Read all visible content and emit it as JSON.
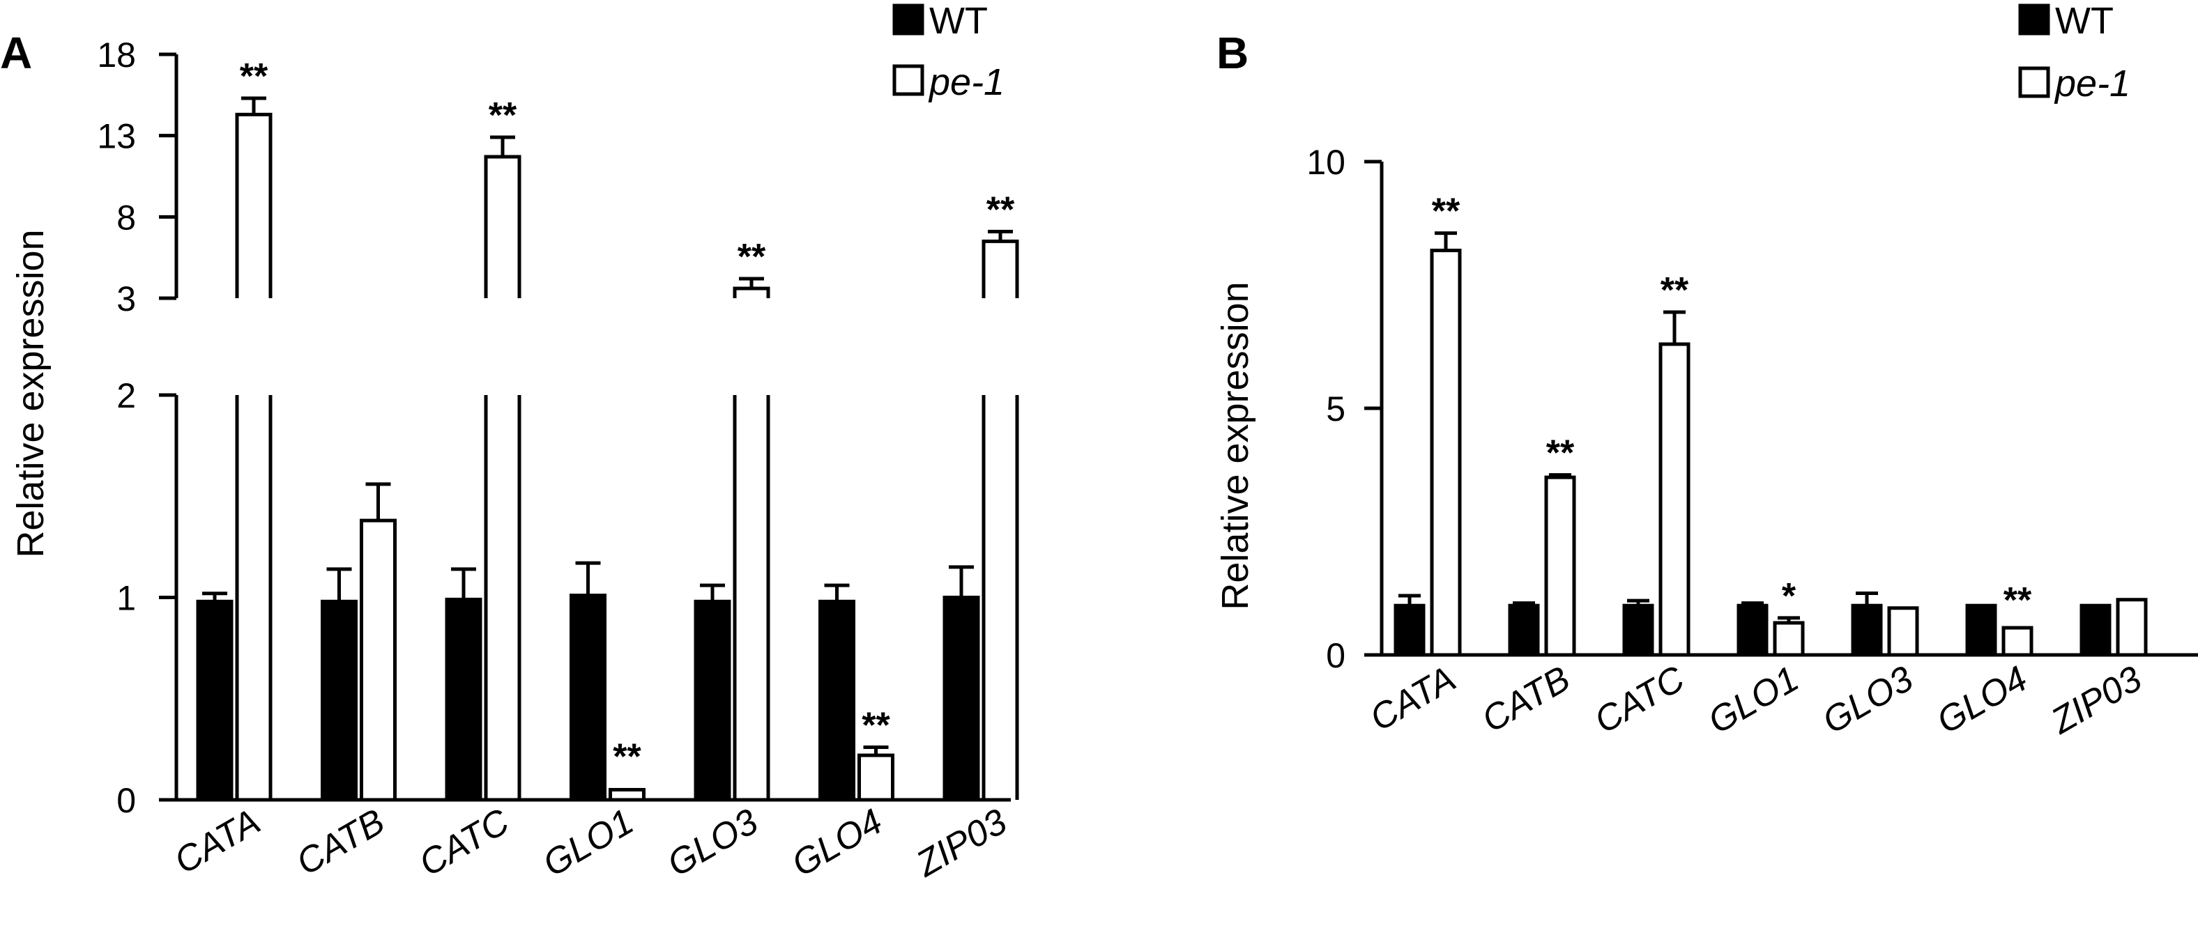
{
  "chart_data": [
    {
      "type": "bar",
      "panel_label": "A",
      "ylabel": "Relative expression",
      "axis": "broken",
      "lower_ylim": [
        0,
        2
      ],
      "lower_ticks": [
        "0",
        "1",
        "2"
      ],
      "upper_ylim": [
        3,
        18
      ],
      "upper_ticks": [
        "3",
        "8",
        "13",
        "18"
      ],
      "categories": [
        "CATA",
        "CATB",
        "CATC",
        "GLO1",
        "GLO3",
        "GLO4",
        "ZIP03"
      ],
      "series": [
        {
          "name": "WT",
          "color": "#000000",
          "values": [
            0.98,
            0.98,
            0.99,
            1.01,
            0.98,
            0.98,
            1.0
          ],
          "errors": [
            0.04,
            0.16,
            0.15,
            0.16,
            0.08,
            0.08,
            0.15
          ]
        },
        {
          "name": "pe-1",
          "color": "#ffffff",
          "values": [
            14.3,
            1.38,
            11.7,
            0.05,
            3.6,
            0.22,
            6.5
          ],
          "errors": [
            1.0,
            0.18,
            1.2,
            0.0,
            0.6,
            0.04,
            0.6
          ]
        }
      ],
      "significance": [
        "**",
        "",
        "**",
        "**",
        "**",
        "**",
        "**"
      ],
      "legend": {
        "position": "top-right",
        "entries": [
          "WT",
          "pe-1"
        ]
      },
      "grid": false
    },
    {
      "type": "bar",
      "panel_label": "B",
      "ylabel": "Relative expression",
      "ylim": [
        0,
        10
      ],
      "ticks": [
        "0",
        "5",
        "10"
      ],
      "categories": [
        "CATA",
        "CATB",
        "CATC",
        "GLO1",
        "GLO3",
        "GLO4",
        "ZIP03"
      ],
      "series": [
        {
          "name": "WT",
          "color": "#000000",
          "values": [
            1.0,
            1.0,
            1.0,
            1.0,
            1.0,
            1.0,
            1.0
          ],
          "errors": [
            0.2,
            0.05,
            0.1,
            0.05,
            0.25,
            0.0,
            0.0
          ]
        },
        {
          "name": "pe-1",
          "color": "#ffffff",
          "values": [
            8.2,
            3.6,
            6.3,
            0.65,
            0.95,
            0.55,
            1.12
          ],
          "errors": [
            0.35,
            0.05,
            0.65,
            0.1,
            0.0,
            0.0,
            0.0
          ]
        }
      ],
      "significance": [
        "**",
        "**",
        "**",
        "*",
        "",
        "**",
        ""
      ],
      "legend": {
        "position": "top-right",
        "entries": [
          "WT",
          "pe-1"
        ]
      },
      "grid": false
    }
  ]
}
